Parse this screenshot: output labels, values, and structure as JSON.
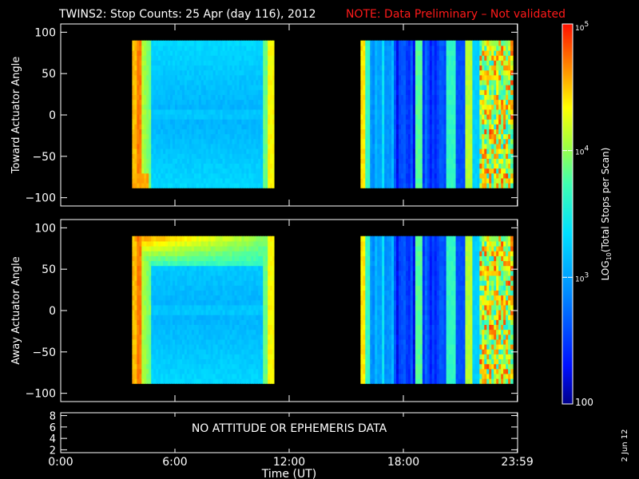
{
  "title": "TWINS2: Stop Counts: 25 Apr (day 116), 2012",
  "note": "NOTE: Data Preliminary – Not validated",
  "colors": {
    "background": "#000000",
    "foreground": "#ffffff",
    "note": "#ff1a1a"
  },
  "date_stamp": "2 Jun 12",
  "chart_data": [
    {
      "type": "heatmap",
      "ylabel": "Toward Actuator Angle",
      "yticks": [
        100,
        50,
        0,
        -50,
        -100
      ],
      "ylim": [
        -110,
        110
      ],
      "data_angle_range": [
        -88,
        90
      ],
      "x_units": "hours UT",
      "data_blocks": [
        {
          "start": 3.75,
          "end": 11.2
        },
        {
          "start": 15.75,
          "end": 23.75
        }
      ]
    },
    {
      "type": "heatmap",
      "ylabel": "Away Actuator Angle",
      "yticks": [
        100,
        50,
        0,
        -50,
        -100
      ],
      "ylim": [
        -110,
        110
      ],
      "data_angle_range": [
        -88,
        90
      ],
      "x_units": "hours UT",
      "data_blocks": [
        {
          "start": 3.75,
          "end": 11.2
        },
        {
          "start": 15.75,
          "end": 23.75
        }
      ]
    },
    {
      "type": "line",
      "yticks": [
        8,
        6,
        4,
        2
      ],
      "ylim": [
        1.5,
        8.5
      ],
      "message": "NO ATTITUDE OR EPHEMERIS DATA"
    }
  ],
  "time_axis": {
    "xlabel": "Time (UT)",
    "xlim": [
      0,
      24
    ],
    "ticks": [
      {
        "label": "0:00",
        "value": 0
      },
      {
        "label": "6:00",
        "value": 6
      },
      {
        "label": "12:00",
        "value": 12
      },
      {
        "label": "18:00",
        "value": 18
      },
      {
        "label": "23:59",
        "value": 23.983
      }
    ]
  },
  "colorbar": {
    "label": "LOG10(Total Stops per Scan)",
    "scale": "log",
    "range": [
      100,
      100000
    ],
    "tick_labels": [
      "10^5",
      "10^4",
      "10^3",
      "100"
    ],
    "tick_values": [
      100000,
      10000,
      1000,
      100
    ]
  }
}
